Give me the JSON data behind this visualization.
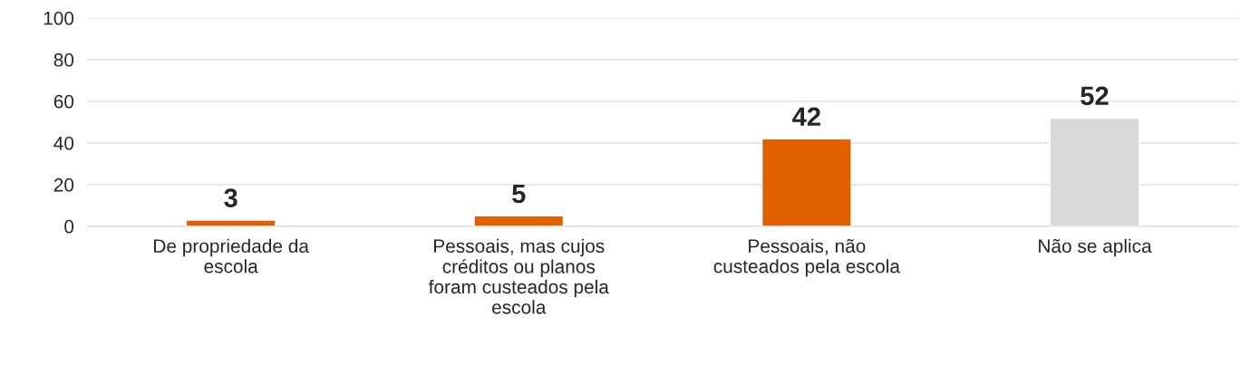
{
  "chart_data": {
    "type": "bar",
    "categories": [
      "De propriedade da escola",
      "Pessoais, mas cujos créditos ou planos foram custeados pela escola",
      "Pessoais, não custeados pela escola",
      "Não se aplica"
    ],
    "values": [
      3,
      5,
      42,
      52
    ],
    "colors": [
      "#e06000",
      "#e06000",
      "#e06000",
      "#d9d9d9"
    ],
    "ylim": [
      0,
      100
    ],
    "yticks": [
      0,
      20,
      40,
      60,
      80,
      100
    ],
    "grid": "y",
    "data_labels": true,
    "legend": false
  }
}
